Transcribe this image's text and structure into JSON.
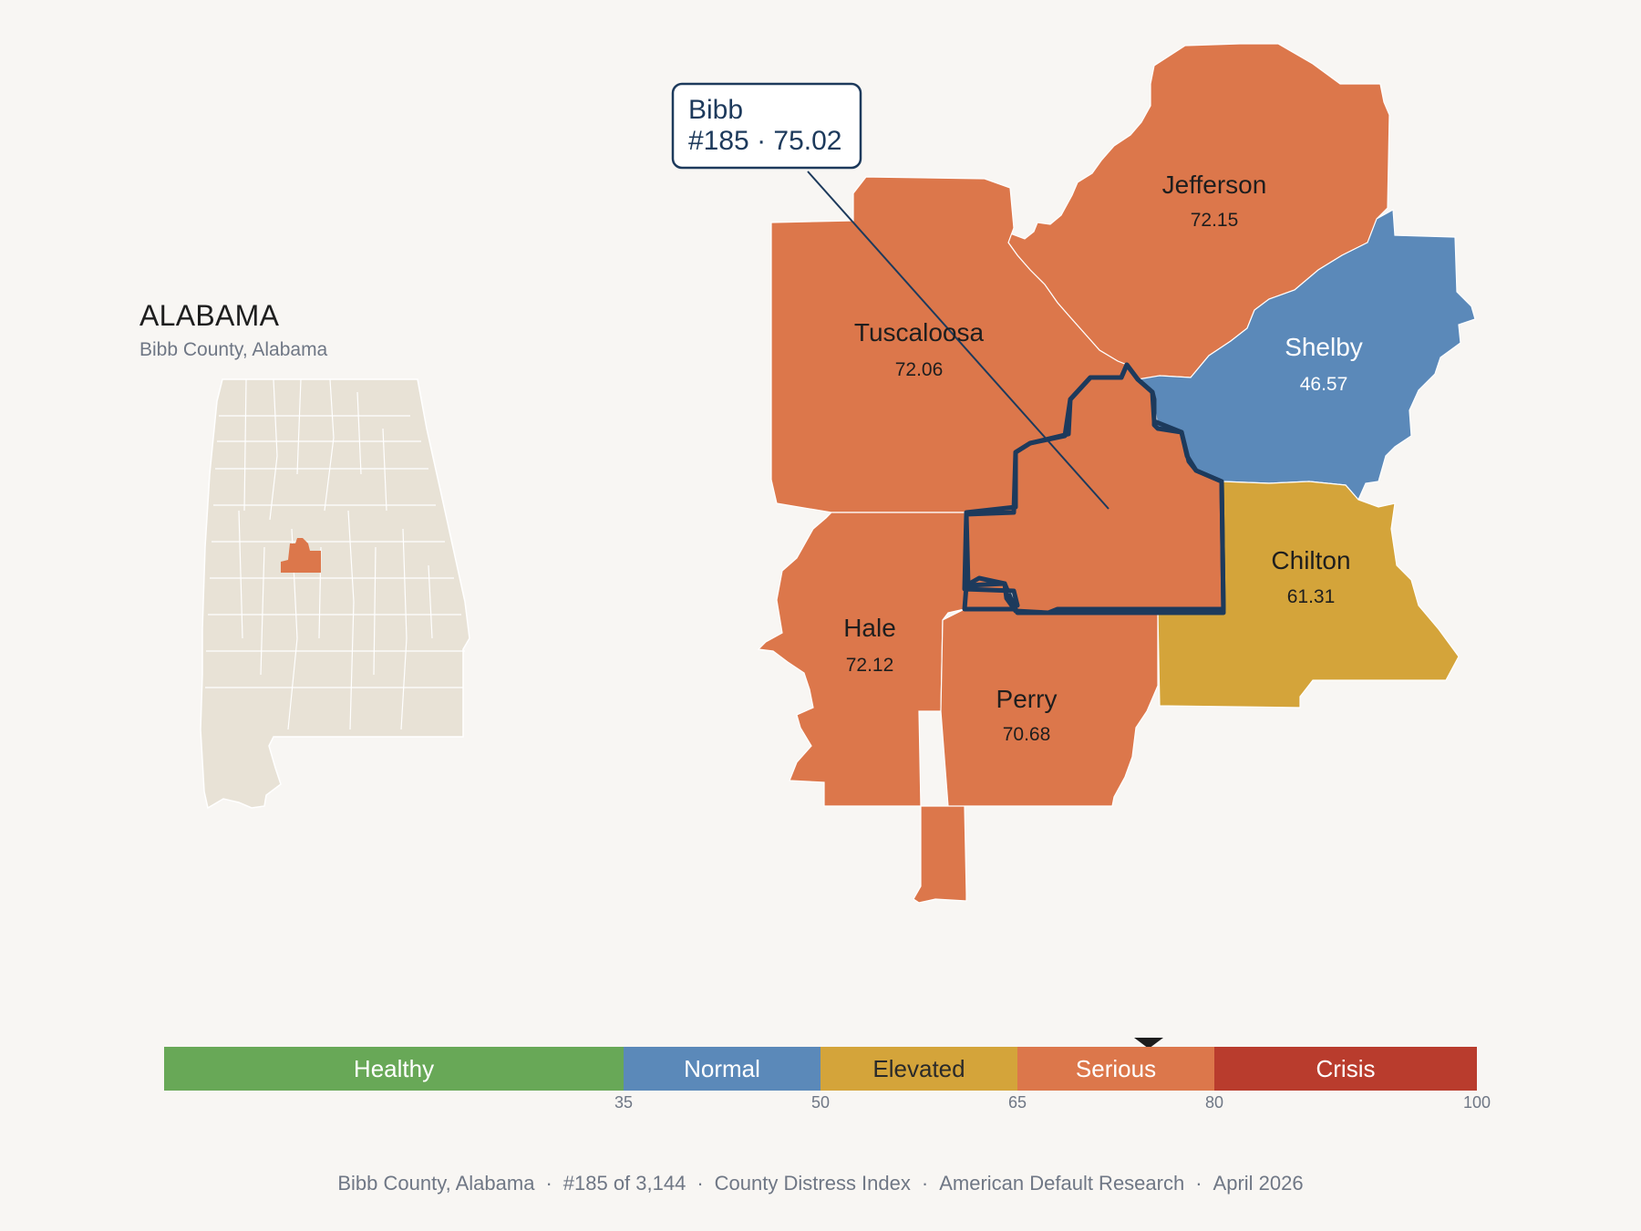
{
  "inset": {
    "title": "ALABAMA",
    "subtitle": "Bibb County, Alabama",
    "base_color": "#e8e2d6",
    "highlight_color": "#dc774b"
  },
  "callout": {
    "name": "Bibb",
    "detail": "#185 · 75.02",
    "border_color": "#1d3a5c"
  },
  "counties": [
    {
      "id": "jefferson",
      "name": "Jefferson",
      "value": "72.15",
      "color": "#dc774b",
      "label_color": "#1e1e1e"
    },
    {
      "id": "tuscaloosa",
      "name": "Tuscaloosa",
      "value": "72.06",
      "color": "#dc774b",
      "label_color": "#1e1e1e"
    },
    {
      "id": "shelby",
      "name": "Shelby",
      "value": "46.57",
      "color": "#5b89b9",
      "label_color": "#ffffff"
    },
    {
      "id": "chilton",
      "name": "Chilton",
      "value": "61.31",
      "color": "#d4a43a",
      "label_color": "#1e1e1e"
    },
    {
      "id": "hale",
      "name": "Hale",
      "value": "72.12",
      "color": "#dc774b",
      "label_color": "#1e1e1e"
    },
    {
      "id": "perry",
      "name": "Perry",
      "value": "70.68",
      "color": "#dc774b",
      "label_color": "#1e1e1e"
    },
    {
      "id": "bibb",
      "name": "Bibb",
      "value": "75.02",
      "color": "#dc774b",
      "label_color": "#1e1e1e"
    }
  ],
  "legend": {
    "segments": [
      {
        "label": "Healthy",
        "from": 0,
        "to": 35,
        "color": "#68a857",
        "text_color": "#ffffff"
      },
      {
        "label": "Normal",
        "from": 35,
        "to": 50,
        "color": "#5b89b9",
        "text_color": "#ffffff"
      },
      {
        "label": "Elevated",
        "from": 50,
        "to": 65,
        "color": "#d4a43a",
        "text_color": "#2a2a2a"
      },
      {
        "label": "Serious",
        "from": 65,
        "to": 80,
        "color": "#dc774b",
        "text_color": "#ffffff"
      },
      {
        "label": "Crisis",
        "from": 80,
        "to": 100,
        "color": "#b93c2d",
        "text_color": "#ffffff"
      }
    ],
    "ticks": [
      "35",
      "50",
      "65",
      "80",
      "100"
    ],
    "marker_value": 75.02
  },
  "footer": {
    "items": [
      "Bibb County, Alabama",
      "#185 of 3,144",
      "County Distress Index",
      "American Default Research",
      "April 2026"
    ],
    "separator": "·"
  }
}
